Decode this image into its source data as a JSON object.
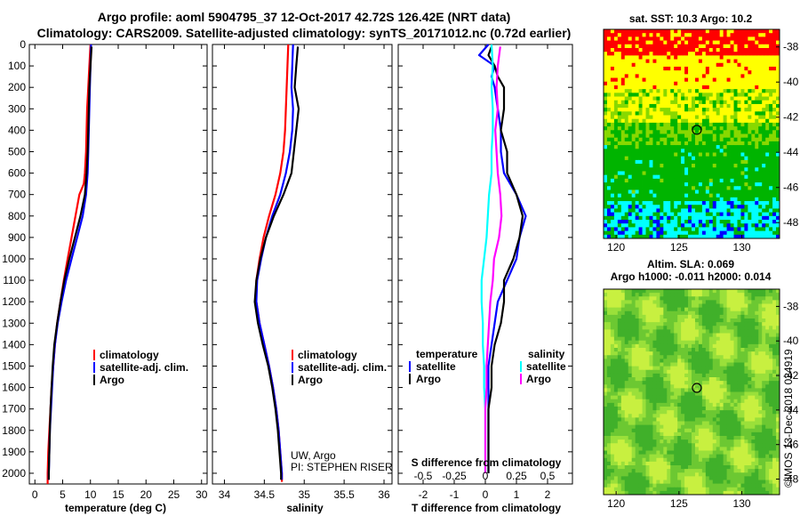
{
  "header": {
    "title_line1": "Argo profile: aoml 5904795_37 12-Oct-2017 42.72S 126.42E (NRT data)",
    "title_line2": "Climatology: CARS2009. Satellite-adjusted climatology: synTS_20171012.nc (0.72d earlier)"
  },
  "colors": {
    "climatology": "#ff0000",
    "satellite": "#0000ff",
    "argo": "#000000",
    "salinity_satellite": "#00ffff",
    "salinity_argo": "#ff00ff",
    "map_red": "#ff0000",
    "map_yellow": "#ffff00",
    "map_lightgreen": "#88d800",
    "map_green": "#00b400",
    "map_cyan": "#00ffff",
    "map_blue": "#0000ff"
  },
  "chart_data": [
    {
      "type": "line",
      "xlabel": "temperature (deg C)",
      "ylim": [
        2050,
        0
      ],
      "xlim": [
        -1,
        31
      ],
      "yticks": [
        0,
        100,
        200,
        300,
        400,
        500,
        600,
        700,
        800,
        900,
        1000,
        1100,
        1200,
        1300,
        1400,
        1500,
        1600,
        1700,
        1800,
        1900,
        2000
      ],
      "xticks": [
        0,
        5,
        10,
        15,
        20,
        25,
        30
      ],
      "legend": {
        "position": "bottom-right",
        "entries": [
          "climatology",
          "satellite-adj. clim.",
          "Argo"
        ]
      },
      "series": [
        {
          "name": "climatology",
          "color": "#ff0000",
          "y": [
            0,
            100,
            200,
            300,
            400,
            500,
            600,
            650,
            700,
            800,
            900,
            1000,
            1100,
            1200,
            1300,
            1400,
            1500,
            1600,
            1700,
            1800,
            1900,
            2000,
            2050
          ],
          "x": [
            10.0,
            9.8,
            9.6,
            9.4,
            9.3,
            9.2,
            9.0,
            8.8,
            8.0,
            7.3,
            6.6,
            5.9,
            5.2,
            4.6,
            4.0,
            3.6,
            3.3,
            3.0,
            2.8,
            2.6,
            2.4,
            2.3,
            2.3
          ]
        },
        {
          "name": "satellite-adj. clim.",
          "color": "#0000ff",
          "y": [
            0,
            100,
            200,
            300,
            400,
            500,
            600,
            700,
            800,
            900,
            1000,
            1100,
            1200,
            1300,
            1400,
            1500,
            1600,
            1700,
            1800,
            1900,
            2000,
            2030
          ],
          "x": [
            10.1,
            10.0,
            9.9,
            9.8,
            9.7,
            9.6,
            9.5,
            9.2,
            8.6,
            7.6,
            6.6,
            5.6,
            4.8,
            4.1,
            3.6,
            3.3,
            3.1,
            2.9,
            2.7,
            2.6,
            2.5,
            2.5
          ]
        },
        {
          "name": "Argo",
          "color": "#000000",
          "y": [
            10,
            100,
            200,
            300,
            400,
            500,
            600,
            700,
            800,
            900,
            1000,
            1100,
            1200,
            1300,
            1400,
            1500,
            1600,
            1700,
            1800,
            1900,
            2000,
            2030
          ],
          "x": [
            10.2,
            10.0,
            9.8,
            9.7,
            9.6,
            9.5,
            9.3,
            9.0,
            8.2,
            7.2,
            6.2,
            5.3,
            4.6,
            4.0,
            3.5,
            3.2,
            3.0,
            2.8,
            2.7,
            2.6,
            2.5,
            2.5
          ]
        }
      ]
    },
    {
      "type": "line",
      "xlabel": "salinity",
      "ylim": [
        2050,
        0
      ],
      "xlim": [
        33.85,
        36.1
      ],
      "xticks": [
        34,
        34.5,
        35,
        35.5,
        36
      ],
      "legend": {
        "position": "bottom-right",
        "entries": [
          "climatology",
          "satellite-adj. clim.",
          "Argo"
        ]
      },
      "annotation": [
        "UW, Argo",
        "PI: STEPHEN RISER"
      ],
      "series": [
        {
          "name": "climatology",
          "color": "#ff0000",
          "y": [
            0,
            100,
            200,
            300,
            400,
            500,
            600,
            700,
            800,
            900,
            1000,
            1100,
            1200,
            1300,
            1400,
            1500,
            1600,
            1700,
            1800,
            1900,
            2000,
            2040
          ],
          "x": [
            34.8,
            34.79,
            34.78,
            34.77,
            34.76,
            34.74,
            34.7,
            34.64,
            34.56,
            34.49,
            34.44,
            34.4,
            34.4,
            34.44,
            34.5,
            34.56,
            34.61,
            34.65,
            34.68,
            34.7,
            34.72,
            34.72
          ]
        },
        {
          "name": "satellite-adj. clim.",
          "color": "#0000ff",
          "y": [
            0,
            100,
            200,
            300,
            400,
            500,
            600,
            700,
            800,
            900,
            1000,
            1100,
            1200,
            1300,
            1400,
            1500,
            1600,
            1700,
            1800,
            1900,
            2000,
            2030
          ],
          "x": [
            34.86,
            34.85,
            34.84,
            34.86,
            34.85,
            34.82,
            34.77,
            34.7,
            34.6,
            34.52,
            34.46,
            34.41,
            34.4,
            34.44,
            34.5,
            34.56,
            34.61,
            34.65,
            34.68,
            34.7,
            34.72,
            34.72
          ]
        },
        {
          "name": "Argo",
          "color": "#000000",
          "y": [
            10,
            100,
            200,
            300,
            400,
            500,
            600,
            700,
            800,
            900,
            1000,
            1100,
            1200,
            1300,
            1400,
            1500,
            1600,
            1700,
            1800,
            1900,
            2000,
            2030
          ],
          "x": [
            34.92,
            34.9,
            34.88,
            34.93,
            34.9,
            34.87,
            34.84,
            34.74,
            34.62,
            34.52,
            34.45,
            34.4,
            34.38,
            34.42,
            34.48,
            34.55,
            34.6,
            34.64,
            34.67,
            34.69,
            34.71,
            34.71
          ]
        }
      ]
    },
    {
      "type": "line",
      "xlabel": "T difference from climatology",
      "top_xlabel": "S difference from climatology",
      "ylim": [
        2050,
        0
      ],
      "xlim": [
        -2.8,
        2.8
      ],
      "xticks": [
        -2,
        -1,
        0,
        1,
        2
      ],
      "top_xticks": [
        "-0.5",
        "-0.25",
        "0",
        "0.25",
        "0.5"
      ],
      "legend_left": {
        "title": "temperature",
        "entries": [
          "satellite",
          "Argo"
        ]
      },
      "legend_right": {
        "title": "salinity",
        "entries": [
          "satellite",
          "Argo"
        ]
      },
      "series": [
        {
          "name": "satellite",
          "quantity": "temperature",
          "color": "#0000ff",
          "y": [
            0,
            50,
            100,
            150,
            200,
            300,
            400,
            500,
            600,
            700,
            800,
            900,
            1000,
            1100,
            1200,
            1300,
            1400,
            1500,
            1600,
            1700,
            1800,
            1900,
            2000
          ],
          "x": [
            0.1,
            -0.2,
            0.3,
            0.2,
            0.3,
            0.4,
            0.5,
            0.5,
            0.6,
            1.0,
            1.3,
            1.1,
            1.0,
            0.7,
            0.4,
            0.3,
            0.2,
            0.1,
            0.1,
            0.1,
            0.1,
            0.1,
            0.1
          ]
        },
        {
          "name": "Argo",
          "quantity": "temperature",
          "color": "#000000",
          "y": [
            10,
            50,
            100,
            150,
            200,
            300,
            400,
            500,
            600,
            700,
            800,
            900,
            1000,
            1100,
            1200,
            1300,
            1400,
            1500,
            1600,
            1700,
            1800,
            1900,
            2000
          ],
          "x": [
            0.2,
            0.1,
            0.3,
            0.4,
            0.6,
            0.6,
            0.5,
            0.7,
            0.7,
            1.0,
            1.2,
            1.1,
            0.9,
            0.6,
            0.6,
            0.5,
            0.3,
            0.2,
            0.2,
            0.1,
            0.1,
            0.1,
            0.1
          ]
        },
        {
          "name": "satellite",
          "quantity": "salinity",
          "color": "#00ffff",
          "y": [
            0,
            100,
            200,
            300,
            400,
            500,
            600,
            700,
            800,
            900,
            1000,
            1100,
            1200,
            1300,
            1400,
            1500,
            1600,
            1700,
            1800,
            1900,
            2000
          ],
          "x": [
            0.05,
            0.06,
            0.05,
            0.06,
            0.06,
            0.05,
            0.05,
            0.03,
            0.02,
            0.01,
            -0.01,
            -0.03,
            -0.03,
            -0.02,
            -0.02,
            -0.01,
            -0.01,
            0.0,
            0.0,
            0.0,
            0.0
          ]
        },
        {
          "name": "Argo",
          "quantity": "salinity",
          "color": "#ff00ff",
          "y": [
            10,
            100,
            200,
            300,
            400,
            500,
            600,
            700,
            800,
            900,
            1000,
            1100,
            1200,
            1300,
            1400,
            1500,
            1600,
            1700,
            1800,
            1900,
            2000
          ],
          "x": [
            0.12,
            0.1,
            0.09,
            0.1,
            0.08,
            0.09,
            0.1,
            0.12,
            0.13,
            0.11,
            0.07,
            0.06,
            0.04,
            0.03,
            0.02,
            0.01,
            0.01,
            0.0,
            0.0,
            0.0,
            0.0
          ]
        }
      ]
    },
    {
      "type": "heatmap",
      "title": "sat. SST: 10.3  Argo: 10.2",
      "xticks": [
        120,
        125,
        130
      ],
      "yticks": [
        -38,
        -40,
        -42,
        -44,
        -46,
        -48
      ],
      "xlim": [
        119,
        133
      ],
      "ylim": [
        -48.9,
        -37
      ],
      "marker": {
        "lon": 126.42,
        "lat": -42.72
      }
    },
    {
      "type": "heatmap",
      "title": "Altim. SLA: 0.069",
      "subtitle": "Argo h1000: -0.011  h2000: 0.014",
      "xticks": [
        120,
        125,
        130
      ],
      "yticks": [
        -38,
        -40,
        -42,
        -44,
        -46,
        -48
      ],
      "xlim": [
        119,
        133
      ],
      "ylim": [
        -48.9,
        -37
      ],
      "marker": {
        "lon": 126.42,
        "lat": -42.72
      }
    }
  ],
  "footer_stamp": "©IMOS 13-Dec-2018 024919"
}
